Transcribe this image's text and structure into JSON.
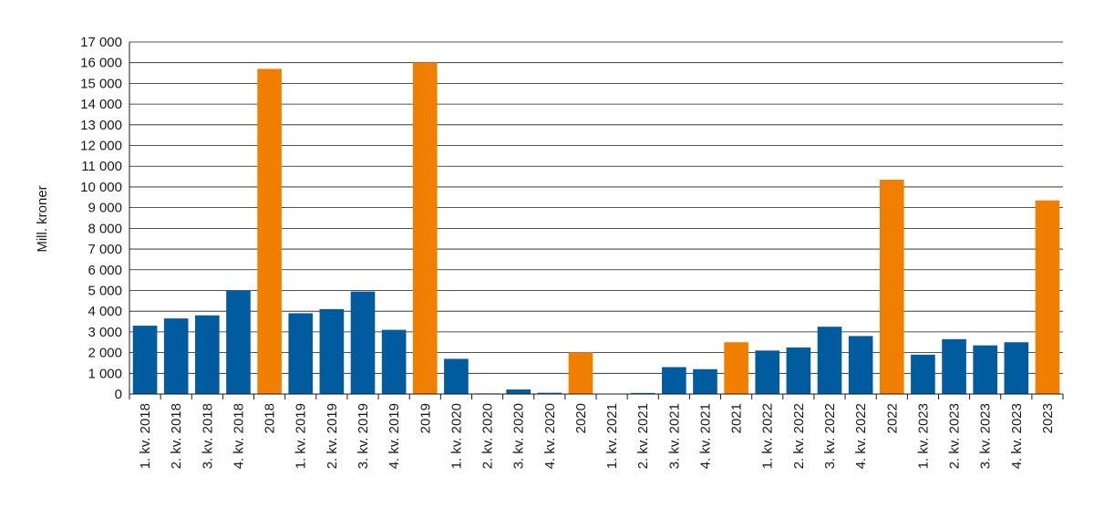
{
  "chart_data": {
    "type": "bar",
    "title": "",
    "xlabel": "",
    "ylabel": "Mill. kroner",
    "ylim": [
      0,
      17000
    ],
    "yticks": [
      0,
      1000,
      2000,
      3000,
      4000,
      5000,
      6000,
      7000,
      8000,
      9000,
      10000,
      11000,
      12000,
      13000,
      14000,
      15000,
      16000,
      17000
    ],
    "ytick_labels": [
      "0",
      "1 000",
      "2 000",
      "3 000",
      "4 000",
      "5 000",
      "6 000",
      "7 000",
      "8 000",
      "9 000",
      "10 000",
      "11 000",
      "12 000",
      "13 000",
      "14 000",
      "15 000",
      "16 000",
      "17 000"
    ],
    "grid": true,
    "legend": "none",
    "colors": {
      "quarter": "#005c9e",
      "year": "#f07f00"
    },
    "categories": [
      "1. kv. 2018",
      "2. kv. 2018",
      "3. kv. 2018",
      "4. kv. 2018",
      "2018",
      "1. kv. 2019",
      "2. kv. 2019",
      "3. kv. 2019",
      "4. kv. 2019",
      "2019",
      "1. kv. 2020",
      "2. kv. 2020",
      "3. kv. 2020",
      "4. kv. 2020",
      "2020",
      "1. kv. 2021",
      "2. kv. 2021",
      "3. kv. 2021",
      "4. kv. 2021",
      "2021",
      "1. kv. 2022",
      "2. kv. 2022",
      "3. kv. 2022",
      "4. kv. 2022",
      "2022",
      "1. kv. 2023",
      "2. kv. 2023",
      "3. kv. 2023",
      "4. kv. 2023",
      "2023"
    ],
    "values": [
      3300,
      3650,
      3800,
      5000,
      15700,
      3900,
      4100,
      4950,
      3100,
      16000,
      1700,
      30,
      220,
      60,
      2000,
      0,
      50,
      1300,
      1200,
      2500,
      2100,
      2250,
      3250,
      2800,
      10350,
      1900,
      2650,
      2350,
      2500,
      9350
    ],
    "kinds": [
      "quarter",
      "quarter",
      "quarter",
      "quarter",
      "year",
      "quarter",
      "quarter",
      "quarter",
      "quarter",
      "year",
      "quarter",
      "quarter",
      "quarter",
      "quarter",
      "year",
      "quarter",
      "quarter",
      "quarter",
      "quarter",
      "year",
      "quarter",
      "quarter",
      "quarter",
      "quarter",
      "year",
      "quarter",
      "quarter",
      "quarter",
      "quarter",
      "year"
    ]
  }
}
